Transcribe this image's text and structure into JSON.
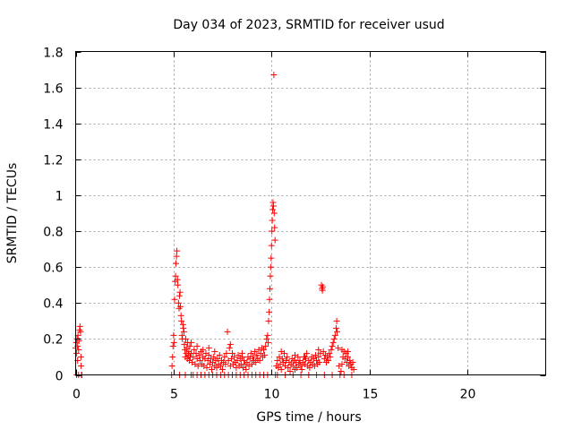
{
  "chart_data": {
    "type": "scatter",
    "title": "Day 034 of 2023, SRMTID for receiver usud",
    "xlabel": "GPS time / hours",
    "ylabel": "SRMTID / TECUs",
    "xlim": [
      0,
      24
    ],
    "ylim": [
      0,
      1.8
    ],
    "grid": true,
    "marker": "plus",
    "color": "#ff0000",
    "x_tick_labels": [
      "0",
      "5",
      "10",
      "15",
      "20"
    ],
    "x_ticks": [
      0,
      5,
      10,
      15,
      20
    ],
    "y_tick_labels": [
      "0",
      "0.2",
      "0.4",
      "0.6",
      "0.8",
      "1",
      "1.2",
      "1.4",
      "1.6",
      "1.8"
    ],
    "y_ticks": [
      0,
      0.2,
      0.4,
      0.6,
      0.8,
      1.0,
      1.2,
      1.4,
      1.6,
      1.8
    ],
    "series": [
      {
        "points": [
          [
            0.0,
            0.15
          ],
          [
            0.03,
            0.18
          ],
          [
            0.05,
            0.12
          ],
          [
            0.07,
            0.2
          ],
          [
            0.1,
            0.16
          ],
          [
            0.12,
            0.22
          ],
          [
            0.15,
            0.14
          ],
          [
            0.17,
            0.19
          ],
          [
            0.2,
            0.25
          ],
          [
            0.22,
            0.27
          ],
          [
            0.25,
            0.24
          ],
          [
            0.27,
            0.1
          ],
          [
            0.28,
            0.05
          ],
          [
            0.3,
            0.0
          ],
          [
            0.32,
            0.0
          ],
          [
            0.1,
            0.08
          ],
          [
            0.05,
            0.0
          ],
          [
            0.15,
            0.0
          ],
          [
            4.9,
            0.0
          ],
          [
            4.92,
            0.05
          ],
          [
            4.95,
            0.1
          ],
          [
            4.97,
            0.16
          ],
          [
            5.0,
            0.22
          ],
          [
            5.02,
            0.18
          ],
          [
            5.05,
            0.42
          ],
          [
            5.08,
            0.52
          ],
          [
            5.1,
            0.55
          ],
          [
            5.12,
            0.62
          ],
          [
            5.15,
            0.66
          ],
          [
            5.17,
            0.69
          ],
          [
            5.2,
            0.53
          ],
          [
            5.22,
            0.5
          ],
          [
            5.25,
            0.4
          ],
          [
            5.28,
            0.37
          ],
          [
            5.3,
            0.44
          ],
          [
            5.33,
            0.46
          ],
          [
            5.35,
            0.38
          ],
          [
            5.38,
            0.33
          ],
          [
            5.4,
            0.3
          ],
          [
            5.43,
            0.22
          ],
          [
            5.45,
            0.2
          ],
          [
            5.48,
            0.28
          ],
          [
            5.5,
            0.26
          ],
          [
            5.53,
            0.24
          ],
          [
            5.55,
            0.17
          ],
          [
            5.58,
            0.14
          ],
          [
            5.6,
            0.1
          ],
          [
            5.62,
            0.2
          ],
          [
            5.65,
            0.12
          ],
          [
            5.68,
            0.15
          ],
          [
            5.7,
            0.09
          ],
          [
            5.72,
            0.18
          ],
          [
            5.75,
            0.11
          ],
          [
            5.78,
            0.13
          ],
          [
            5.8,
            0.08
          ],
          [
            5.83,
            0.16
          ],
          [
            5.85,
            0.1
          ],
          [
            5.9,
            0.12
          ],
          [
            5.95,
            0.07
          ],
          [
            6.0,
            0.1
          ],
          [
            6.05,
            0.14
          ],
          [
            6.1,
            0.06
          ],
          [
            6.15,
            0.12
          ],
          [
            6.2,
            0.09
          ],
          [
            6.25,
            0.05
          ],
          [
            6.3,
            0.11
          ],
          [
            6.35,
            0.08
          ],
          [
            6.4,
            0.13
          ],
          [
            6.45,
            0.06
          ],
          [
            6.5,
            0.1
          ],
          [
            6.55,
            0.05
          ],
          [
            6.6,
            0.09
          ],
          [
            6.65,
            0.12
          ],
          [
            6.7,
            0.04
          ],
          [
            6.75,
            0.08
          ],
          [
            6.8,
            0.11
          ],
          [
            6.85,
            0.06
          ],
          [
            6.9,
            0.09
          ],
          [
            6.95,
            0.03
          ],
          [
            7.0,
            0.07
          ],
          [
            7.05,
            0.1
          ],
          [
            7.1,
            0.05
          ],
          [
            7.15,
            0.08
          ],
          [
            7.2,
            0.04
          ],
          [
            7.25,
            0.09
          ],
          [
            7.3,
            0.06
          ],
          [
            7.35,
            0.11
          ],
          [
            7.4,
            0.05
          ],
          [
            7.45,
            0.08
          ],
          [
            7.5,
            0.03
          ],
          [
            7.55,
            0.07
          ],
          [
            7.6,
            0.1
          ],
          [
            7.65,
            0.06
          ],
          [
            7.7,
            0.12
          ],
          [
            7.75,
            0.24
          ],
          [
            7.8,
            0.08
          ],
          [
            7.85,
            0.15
          ],
          [
            7.9,
            0.05
          ],
          [
            7.95,
            0.09
          ],
          [
            8.0,
            0.12
          ],
          [
            8.05,
            0.06
          ],
          [
            8.1,
            0.1
          ],
          [
            8.15,
            0.07
          ],
          [
            8.2,
            0.04
          ],
          [
            8.25,
            0.08
          ],
          [
            8.3,
            0.11
          ],
          [
            8.35,
            0.05
          ],
          [
            8.4,
            0.09
          ],
          [
            8.45,
            0.06
          ],
          [
            8.5,
            0.1
          ],
          [
            8.55,
            0.04
          ],
          [
            8.6,
            0.08
          ],
          [
            8.65,
            0.06
          ],
          [
            8.7,
            0.03
          ],
          [
            8.75,
            0.07
          ],
          [
            8.8,
            0.1
          ],
          [
            8.85,
            0.05
          ],
          [
            8.9,
            0.09
          ],
          [
            8.95,
            0.12
          ],
          [
            9.0,
            0.06
          ],
          [
            9.05,
            0.1
          ],
          [
            9.1,
            0.08
          ],
          [
            9.15,
            0.13
          ],
          [
            9.2,
            0.07
          ],
          [
            9.25,
            0.11
          ],
          [
            9.3,
            0.09
          ],
          [
            9.35,
            0.14
          ],
          [
            9.4,
            0.08
          ],
          [
            9.45,
            0.12
          ],
          [
            9.5,
            0.15
          ],
          [
            9.55,
            0.1
          ],
          [
            9.6,
            0.14
          ],
          [
            9.65,
            0.11
          ],
          [
            9.7,
            0.16
          ],
          [
            9.75,
            0.2
          ],
          [
            9.8,
            0.22
          ],
          [
            9.83,
            0.18
          ],
          [
            9.85,
            0.3
          ],
          [
            9.88,
            0.35
          ],
          [
            9.9,
            0.42
          ],
          [
            9.92,
            0.48
          ],
          [
            9.94,
            0.55
          ],
          [
            9.96,
            0.6
          ],
          [
            9.98,
            0.65
          ],
          [
            10.0,
            0.72
          ],
          [
            10.02,
            0.8
          ],
          [
            10.04,
            0.86
          ],
          [
            10.06,
            0.92
          ],
          [
            10.08,
            0.96
          ],
          [
            10.1,
            0.94
          ],
          [
            10.12,
            1.67
          ],
          [
            10.14,
            0.9
          ],
          [
            10.16,
            0.82
          ],
          [
            10.18,
            0.75
          ],
          [
            6.0,
            0.0
          ],
          [
            6.4,
            0.0
          ],
          [
            6.8,
            0.0
          ],
          [
            7.2,
            0.0
          ],
          [
            7.6,
            0.0
          ],
          [
            8.0,
            0.0
          ],
          [
            8.4,
            0.0
          ],
          [
            8.8,
            0.0
          ],
          [
            9.2,
            0.0
          ],
          [
            9.6,
            0.0
          ],
          [
            5.3,
            0.0
          ],
          [
            5.6,
            0.0
          ],
          [
            5.9,
            0.0
          ],
          [
            6.2,
            0.0
          ],
          [
            6.6,
            0.0
          ],
          [
            7.0,
            0.0
          ],
          [
            7.4,
            0.0
          ],
          [
            7.8,
            0.0
          ],
          [
            8.2,
            0.0
          ],
          [
            8.6,
            0.0
          ],
          [
            9.0,
            0.0
          ],
          [
            9.4,
            0.0
          ],
          [
            9.8,
            0.0
          ],
          [
            5.9,
            0.18
          ],
          [
            6.2,
            0.16
          ],
          [
            6.5,
            0.14
          ],
          [
            6.8,
            0.15
          ],
          [
            7.1,
            0.13
          ],
          [
            8.5,
            0.12
          ],
          [
            7.9,
            0.17
          ],
          [
            10.2,
            0.0
          ],
          [
            10.25,
            0.05
          ],
          [
            10.3,
            0.08
          ],
          [
            10.35,
            0.04
          ],
          [
            10.4,
            0.1
          ],
          [
            10.45,
            0.06
          ],
          [
            10.5,
            0.03
          ],
          [
            10.55,
            0.09
          ],
          [
            10.6,
            0.07
          ],
          [
            10.65,
            0.12
          ],
          [
            10.7,
            0.05
          ],
          [
            10.75,
            0.08
          ],
          [
            10.8,
            0.1
          ],
          [
            10.85,
            0.04
          ],
          [
            10.9,
            0.07
          ],
          [
            10.95,
            0.02
          ],
          [
            11.0,
            0.06
          ],
          [
            11.05,
            0.09
          ],
          [
            11.1,
            0.05
          ],
          [
            11.15,
            0.08
          ],
          [
            11.2,
            0.03
          ],
          [
            11.25,
            0.07
          ],
          [
            11.3,
            0.04
          ],
          [
            11.35,
            0.1
          ],
          [
            11.4,
            0.06
          ],
          [
            11.45,
            0.08
          ],
          [
            11.5,
            0.05
          ],
          [
            11.55,
            0.03
          ],
          [
            11.6,
            0.07
          ],
          [
            11.65,
            0.1
          ],
          [
            11.7,
            0.06
          ],
          [
            11.75,
            0.09
          ],
          [
            11.8,
            0.12
          ],
          [
            11.85,
            0.05
          ],
          [
            11.9,
            0.08
          ],
          [
            11.95,
            0.04
          ],
          [
            12.0,
            0.07
          ],
          [
            12.05,
            0.1
          ],
          [
            12.1,
            0.06
          ],
          [
            12.15,
            0.09
          ],
          [
            12.2,
            0.05
          ],
          [
            12.25,
            0.11
          ],
          [
            12.3,
            0.08
          ],
          [
            12.35,
            0.06
          ],
          [
            12.4,
            0.1
          ],
          [
            12.45,
            0.07
          ],
          [
            12.5,
            0.12
          ],
          [
            12.55,
            0.5
          ],
          [
            12.58,
            0.48
          ],
          [
            12.6,
            0.47
          ],
          [
            12.62,
            0.49
          ],
          [
            12.65,
            0.13
          ],
          [
            12.7,
            0.09
          ],
          [
            12.75,
            0.11
          ],
          [
            12.8,
            0.07
          ],
          [
            12.85,
            0.1
          ],
          [
            12.9,
            0.08
          ],
          [
            12.95,
            0.12
          ],
          [
            13.0,
            0.1
          ],
          [
            13.05,
            0.14
          ],
          [
            13.1,
            0.16
          ],
          [
            13.15,
            0.18
          ],
          [
            13.2,
            0.2
          ],
          [
            13.25,
            0.22
          ],
          [
            13.3,
            0.26
          ],
          [
            13.33,
            0.3
          ],
          [
            13.35,
            0.24
          ],
          [
            13.4,
            0.15
          ],
          [
            13.45,
            0.05
          ],
          [
            13.5,
            0.0
          ],
          [
            13.55,
            0.02
          ],
          [
            13.6,
            0.06
          ],
          [
            13.65,
            0.1
          ],
          [
            13.7,
            0.13
          ],
          [
            13.75,
            0.09
          ],
          [
            13.8,
            0.12
          ],
          [
            13.85,
            0.07
          ],
          [
            13.9,
            0.1
          ],
          [
            13.95,
            0.05
          ],
          [
            14.0,
            0.08
          ],
          [
            14.05,
            0.06
          ],
          [
            14.1,
            0.04
          ],
          [
            14.15,
            0.07
          ],
          [
            14.2,
            0.03
          ],
          [
            10.3,
            0.0
          ],
          [
            10.7,
            0.0
          ],
          [
            11.1,
            0.0
          ],
          [
            11.5,
            0.0
          ],
          [
            11.9,
            0.0
          ],
          [
            12.3,
            0.0
          ],
          [
            12.7,
            0.0
          ],
          [
            13.1,
            0.0
          ],
          [
            13.7,
            0.0
          ],
          [
            14.1,
            0.0
          ],
          [
            10.5,
            0.13
          ],
          [
            11.2,
            0.11
          ],
          [
            11.7,
            0.1
          ],
          [
            12.4,
            0.14
          ],
          [
            13.6,
            0.14
          ],
          [
            13.9,
            0.13
          ]
        ]
      }
    ]
  }
}
